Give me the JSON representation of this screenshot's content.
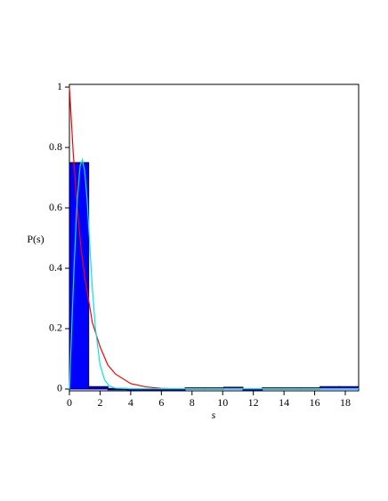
{
  "chart_data": {
    "type": "histogram",
    "ylabel": "P(s)",
    "xlabel": "s",
    "bins": [
      0,
      1.258,
      2.516,
      3.774,
      5.032,
      6.29,
      7.548,
      8.806,
      10.064,
      11.322,
      12.58,
      13.838,
      15.096,
      16.354,
      17.612,
      18.87
    ],
    "values": [
      0.75,
      0.008,
      0.002,
      0,
      0,
      0,
      0.004,
      0.004,
      0.006,
      0,
      0.004,
      0.004,
      0.004,
      0.008,
      0.008
    ],
    "color": "#0000ff",
    "series": [
      {
        "color": "#ff0000",
        "x": [
          0,
          0.25,
          0.5,
          0.75,
          1,
          1.5,
          2,
          2.5,
          3,
          4,
          5,
          6,
          6.5
        ],
        "values": [
          1,
          0.78,
          0.61,
          0.47,
          0.37,
          0.22,
          0.14,
          0.08,
          0.05,
          0.018,
          0.007,
          0.002,
          0.0015
        ]
      },
      {
        "color": "#00e5ee",
        "x": [
          0,
          0.15,
          0.3,
          0.5,
          0.7,
          0.85,
          1,
          1.15,
          1.3,
          1.5,
          1.7,
          2,
          2.3,
          2.6,
          3,
          4,
          18.87
        ],
        "values": [
          0,
          0.2,
          0.4,
          0.62,
          0.74,
          0.76,
          0.72,
          0.63,
          0.5,
          0.33,
          0.2,
          0.08,
          0.03,
          0.01,
          0.003,
          0.001,
          0.001
        ]
      }
    ],
    "xlim": [
      0,
      18.87
    ],
    "ylim": [
      -0.006,
      1.009
    ],
    "xticks": [
      0,
      2,
      4,
      6,
      8,
      10,
      12,
      14,
      16,
      18
    ],
    "yticks": [
      0,
      0.2,
      0.4,
      0.6,
      0.8,
      1
    ]
  }
}
